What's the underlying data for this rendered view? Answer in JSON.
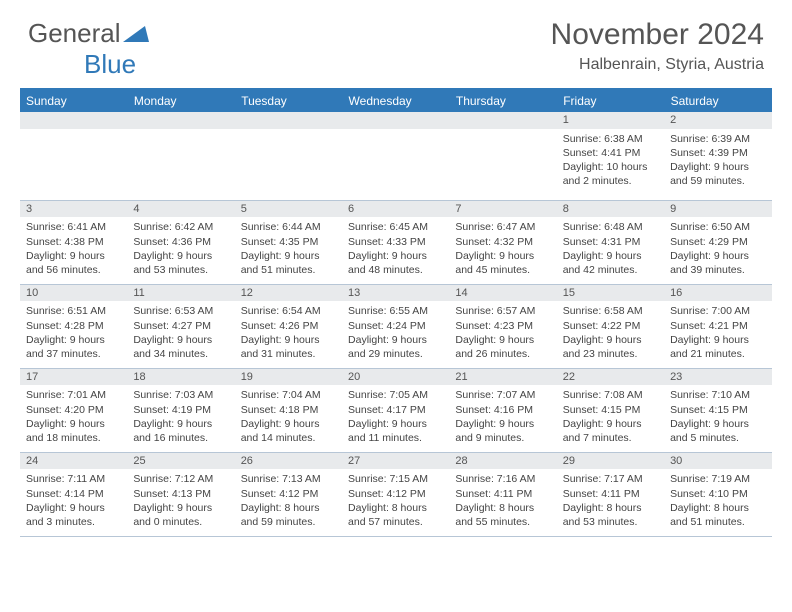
{
  "brand": {
    "part1": "General",
    "part2": "Blue"
  },
  "title": "November 2024",
  "location": "Halbenrain, Styria, Austria",
  "colors": {
    "brand_blue": "#3079b8",
    "band_bg": "#e8eaec",
    "rule": "#b7c6d6",
    "text": "#444444",
    "header_text": "#555555"
  },
  "day_headers": [
    "Sunday",
    "Monday",
    "Tuesday",
    "Wednesday",
    "Thursday",
    "Friday",
    "Saturday"
  ],
  "weeks": [
    [
      null,
      null,
      null,
      null,
      null,
      {
        "n": "1",
        "sunrise": "6:38 AM",
        "sunset": "4:41 PM",
        "daylight": "10 hours and 2 minutes."
      },
      {
        "n": "2",
        "sunrise": "6:39 AM",
        "sunset": "4:39 PM",
        "daylight": "9 hours and 59 minutes."
      }
    ],
    [
      {
        "n": "3",
        "sunrise": "6:41 AM",
        "sunset": "4:38 PM",
        "daylight": "9 hours and 56 minutes."
      },
      {
        "n": "4",
        "sunrise": "6:42 AM",
        "sunset": "4:36 PM",
        "daylight": "9 hours and 53 minutes."
      },
      {
        "n": "5",
        "sunrise": "6:44 AM",
        "sunset": "4:35 PM",
        "daylight": "9 hours and 51 minutes."
      },
      {
        "n": "6",
        "sunrise": "6:45 AM",
        "sunset": "4:33 PM",
        "daylight": "9 hours and 48 minutes."
      },
      {
        "n": "7",
        "sunrise": "6:47 AM",
        "sunset": "4:32 PM",
        "daylight": "9 hours and 45 minutes."
      },
      {
        "n": "8",
        "sunrise": "6:48 AM",
        "sunset": "4:31 PM",
        "daylight": "9 hours and 42 minutes."
      },
      {
        "n": "9",
        "sunrise": "6:50 AM",
        "sunset": "4:29 PM",
        "daylight": "9 hours and 39 minutes."
      }
    ],
    [
      {
        "n": "10",
        "sunrise": "6:51 AM",
        "sunset": "4:28 PM",
        "daylight": "9 hours and 37 minutes."
      },
      {
        "n": "11",
        "sunrise": "6:53 AM",
        "sunset": "4:27 PM",
        "daylight": "9 hours and 34 minutes."
      },
      {
        "n": "12",
        "sunrise": "6:54 AM",
        "sunset": "4:26 PM",
        "daylight": "9 hours and 31 minutes."
      },
      {
        "n": "13",
        "sunrise": "6:55 AM",
        "sunset": "4:24 PM",
        "daylight": "9 hours and 29 minutes."
      },
      {
        "n": "14",
        "sunrise": "6:57 AM",
        "sunset": "4:23 PM",
        "daylight": "9 hours and 26 minutes."
      },
      {
        "n": "15",
        "sunrise": "6:58 AM",
        "sunset": "4:22 PM",
        "daylight": "9 hours and 23 minutes."
      },
      {
        "n": "16",
        "sunrise": "7:00 AM",
        "sunset": "4:21 PM",
        "daylight": "9 hours and 21 minutes."
      }
    ],
    [
      {
        "n": "17",
        "sunrise": "7:01 AM",
        "sunset": "4:20 PM",
        "daylight": "9 hours and 18 minutes."
      },
      {
        "n": "18",
        "sunrise": "7:03 AM",
        "sunset": "4:19 PM",
        "daylight": "9 hours and 16 minutes."
      },
      {
        "n": "19",
        "sunrise": "7:04 AM",
        "sunset": "4:18 PM",
        "daylight": "9 hours and 14 minutes."
      },
      {
        "n": "20",
        "sunrise": "7:05 AM",
        "sunset": "4:17 PM",
        "daylight": "9 hours and 11 minutes."
      },
      {
        "n": "21",
        "sunrise": "7:07 AM",
        "sunset": "4:16 PM",
        "daylight": "9 hours and 9 minutes."
      },
      {
        "n": "22",
        "sunrise": "7:08 AM",
        "sunset": "4:15 PM",
        "daylight": "9 hours and 7 minutes."
      },
      {
        "n": "23",
        "sunrise": "7:10 AM",
        "sunset": "4:15 PM",
        "daylight": "9 hours and 5 minutes."
      }
    ],
    [
      {
        "n": "24",
        "sunrise": "7:11 AM",
        "sunset": "4:14 PM",
        "daylight": "9 hours and 3 minutes."
      },
      {
        "n": "25",
        "sunrise": "7:12 AM",
        "sunset": "4:13 PM",
        "daylight": "9 hours and 0 minutes."
      },
      {
        "n": "26",
        "sunrise": "7:13 AM",
        "sunset": "4:12 PM",
        "daylight": "8 hours and 59 minutes."
      },
      {
        "n": "27",
        "sunrise": "7:15 AM",
        "sunset": "4:12 PM",
        "daylight": "8 hours and 57 minutes."
      },
      {
        "n": "28",
        "sunrise": "7:16 AM",
        "sunset": "4:11 PM",
        "daylight": "8 hours and 55 minutes."
      },
      {
        "n": "29",
        "sunrise": "7:17 AM",
        "sunset": "4:11 PM",
        "daylight": "8 hours and 53 minutes."
      },
      {
        "n": "30",
        "sunrise": "7:19 AM",
        "sunset": "4:10 PM",
        "daylight": "8 hours and 51 minutes."
      }
    ]
  ],
  "labels": {
    "sunrise": "Sunrise: ",
    "sunset": "Sunset: ",
    "daylight": "Daylight: "
  }
}
